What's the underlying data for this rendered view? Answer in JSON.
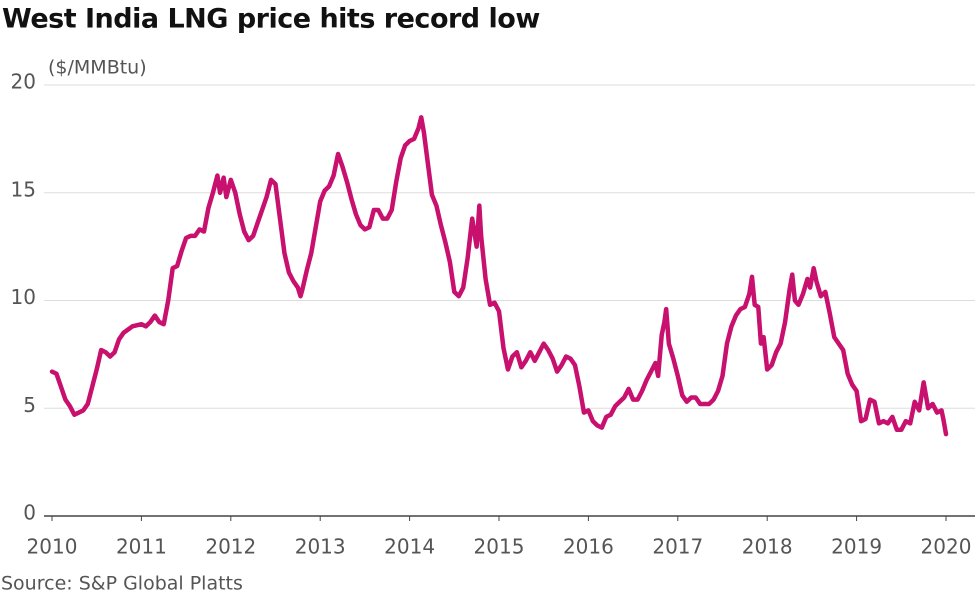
{
  "chart_data": {
    "type": "line",
    "title": "West India LNG price hits record low",
    "y_label": "($/MMBtu)",
    "source": "Source: S&P Global Platts",
    "color": "#c8106e",
    "grid": true,
    "xlim": [
      2010,
      2020
    ],
    "xticks": [
      2010,
      2011,
      2012,
      2013,
      2014,
      2015,
      2016,
      2017,
      2018,
      2019,
      2020
    ],
    "ylim": [
      0,
      20
    ],
    "yticks": [
      0,
      5,
      10,
      15,
      20
    ],
    "x": [
      2010.0,
      2010.05,
      2010.1,
      2010.15,
      2010.2,
      2010.25,
      2010.3,
      2010.35,
      2010.4,
      2010.45,
      2010.5,
      2010.55,
      2010.6,
      2010.65,
      2010.7,
      2010.75,
      2010.8,
      2010.9,
      2011.0,
      2011.05,
      2011.1,
      2011.15,
      2011.2,
      2011.25,
      2011.3,
      2011.35,
      2011.4,
      2011.45,
      2011.5,
      2011.55,
      2011.6,
      2011.65,
      2011.7,
      2011.75,
      2011.8,
      2011.85,
      2011.88,
      2011.92,
      2011.95,
      2012.0,
      2012.05,
      2012.1,
      2012.15,
      2012.2,
      2012.25,
      2012.3,
      2012.35,
      2012.4,
      2012.45,
      2012.5,
      2012.55,
      2012.6,
      2012.65,
      2012.7,
      2012.75,
      2012.78,
      2012.8,
      2012.85,
      2012.9,
      2012.95,
      2013.0,
      2013.05,
      2013.1,
      2013.15,
      2013.2,
      2013.25,
      2013.3,
      2013.35,
      2013.4,
      2013.45,
      2013.5,
      2013.55,
      2013.6,
      2013.65,
      2013.7,
      2013.75,
      2013.8,
      2013.85,
      2013.9,
      2013.95,
      2014.0,
      2014.05,
      2014.1,
      2014.13,
      2014.16,
      2014.2,
      2014.25,
      2014.3,
      2014.35,
      2014.4,
      2014.45,
      2014.5,
      2014.55,
      2014.6,
      2014.65,
      2014.7,
      2014.75,
      2014.78,
      2014.8,
      2014.85,
      2014.9,
      2014.95,
      2015.0,
      2015.05,
      2015.1,
      2015.15,
      2015.2,
      2015.25,
      2015.3,
      2015.35,
      2015.4,
      2015.45,
      2015.5,
      2015.55,
      2015.6,
      2015.65,
      2015.7,
      2015.75,
      2015.8,
      2015.85,
      2015.9,
      2015.95,
      2016.0,
      2016.05,
      2016.1,
      2016.15,
      2016.2,
      2016.25,
      2016.3,
      2016.35,
      2016.4,
      2016.45,
      2016.5,
      2016.55,
      2016.6,
      2016.65,
      2016.7,
      2016.75,
      2016.78,
      2016.82,
      2016.85,
      2016.87,
      2016.9,
      2016.95,
      2017.0,
      2017.05,
      2017.1,
      2017.15,
      2017.2,
      2017.25,
      2017.3,
      2017.35,
      2017.4,
      2017.45,
      2017.5,
      2017.55,
      2017.6,
      2017.65,
      2017.7,
      2017.75,
      2017.8,
      2017.83,
      2017.86,
      2017.9,
      2017.93,
      2017.96,
      2018.0,
      2018.05,
      2018.1,
      2018.15,
      2018.2,
      2018.25,
      2018.28,
      2018.31,
      2018.35,
      2018.4,
      2018.45,
      2018.48,
      2018.52,
      2018.55,
      2018.6,
      2018.65,
      2018.7,
      2018.75,
      2018.8,
      2018.85,
      2018.9,
      2018.95,
      2019.0,
      2019.05,
      2019.1,
      2019.15,
      2019.2,
      2019.25,
      2019.3,
      2019.35,
      2019.4,
      2019.45,
      2019.5,
      2019.55,
      2019.6,
      2019.65,
      2019.7,
      2019.75,
      2019.8,
      2019.85,
      2019.9,
      2019.95,
      2019.97,
      2020.0
    ],
    "values": [
      6.7,
      6.6,
      6.0,
      5.4,
      5.1,
      4.7,
      4.8,
      4.9,
      5.2,
      6.0,
      6.8,
      7.7,
      7.6,
      7.4,
      7.6,
      8.2,
      8.5,
      8.8,
      8.9,
      8.8,
      9.0,
      9.3,
      9.0,
      8.9,
      10.0,
      11.5,
      11.6,
      12.3,
      12.9,
      13.0,
      13.0,
      13.3,
      13.2,
      14.3,
      15.0,
      15.8,
      15.0,
      15.7,
      14.8,
      15.6,
      15.0,
      14.0,
      13.2,
      12.8,
      13.0,
      13.6,
      14.2,
      14.8,
      15.6,
      15.4,
      13.8,
      12.2,
      11.3,
      10.9,
      10.6,
      10.2,
      10.5,
      11.4,
      12.2,
      13.4,
      14.6,
      15.1,
      15.3,
      15.8,
      16.8,
      16.2,
      15.5,
      14.7,
      14.0,
      13.5,
      13.3,
      13.4,
      14.2,
      14.2,
      13.8,
      13.8,
      14.2,
      15.5,
      16.6,
      17.2,
      17.4,
      17.5,
      18.0,
      18.5,
      17.8,
      16.5,
      14.9,
      14.4,
      13.5,
      12.7,
      11.8,
      10.4,
      10.2,
      10.6,
      12.0,
      13.8,
      12.5,
      14.4,
      13.0,
      11.0,
      9.8,
      9.9,
      9.5,
      7.8,
      6.8,
      7.4,
      7.6,
      6.9,
      7.2,
      7.6,
      7.2,
      7.6,
      8.0,
      7.7,
      7.3,
      6.7,
      7.0,
      7.4,
      7.3,
      7.0,
      6.0,
      4.8,
      4.9,
      4.4,
      4.2,
      4.1,
      4.6,
      4.7,
      5.1,
      5.3,
      5.5,
      5.9,
      5.4,
      5.4,
      5.8,
      6.3,
      6.7,
      7.1,
      6.5,
      8.4,
      9.0,
      9.6,
      8.0,
      7.3,
      6.5,
      5.6,
      5.3,
      5.5,
      5.5,
      5.2,
      5.2,
      5.2,
      5.4,
      5.8,
      6.5,
      8.0,
      8.8,
      9.3,
      9.6,
      9.7,
      10.3,
      11.1,
      9.8,
      9.7,
      8.0,
      8.3,
      6.8,
      7.0,
      7.6,
      8.0,
      9.0,
      10.5,
      11.2,
      10.0,
      9.8,
      10.3,
      11.0,
      10.6,
      11.5,
      10.9,
      10.2,
      10.4,
      9.4,
      8.3,
      8.0,
      7.7,
      6.6,
      6.1,
      5.8,
      4.4,
      4.5,
      5.4,
      5.3,
      4.3,
      4.4,
      4.3,
      4.6,
      4.0,
      4.0,
      4.4,
      4.3,
      5.3,
      4.9,
      6.2,
      5.0,
      5.2,
      4.8,
      4.9,
      4.5,
      3.8
    ]
  }
}
